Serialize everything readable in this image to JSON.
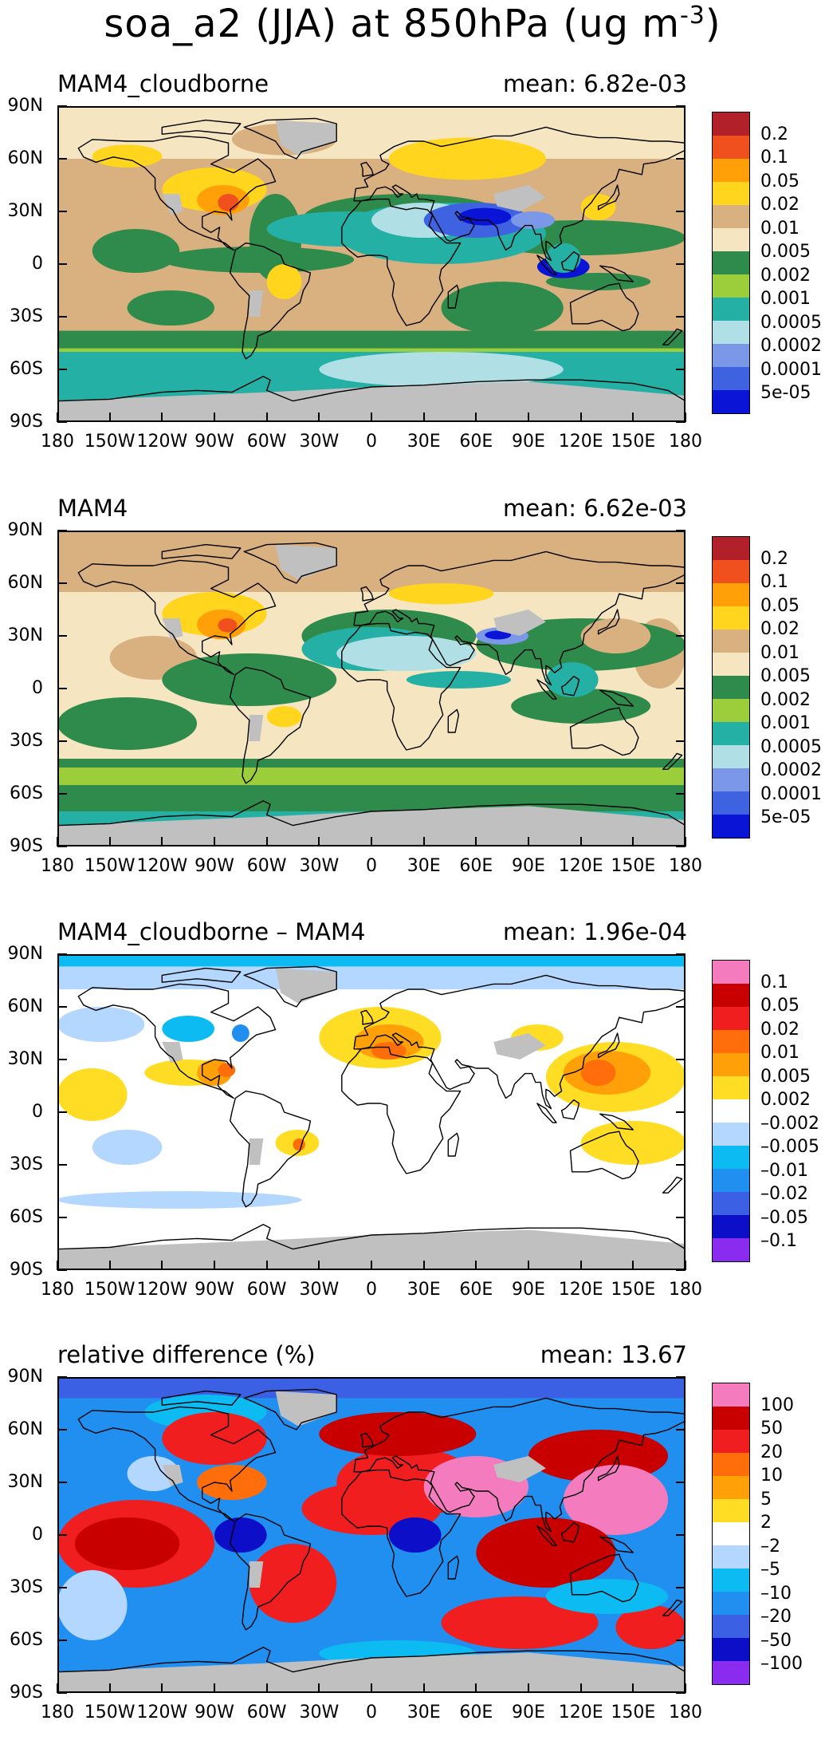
{
  "title": {
    "text": "soa_a2 (JJA) at 850hPa (ug m",
    "exp": "-3",
    "close": ")"
  },
  "axes": {
    "lat_labels": [
      "90N",
      "60N",
      "30N",
      "0",
      "30S",
      "60S",
      "90S"
    ],
    "lon_labels": [
      "180",
      "150W",
      "120W",
      "90W",
      "60W",
      "30W",
      "0",
      "30E",
      "60E",
      "90E",
      "120E",
      "150E",
      "180"
    ]
  },
  "palettes": {
    "abs": [
      "#b2202a",
      "#f0501e",
      "#ffa008",
      "#ffd51e",
      "#d9b07f",
      "#f5e6c1",
      "#2e8b4b",
      "#9cce3c",
      "#25b0a6",
      "#b0e0e6",
      "#7b97e8",
      "#3f63e0",
      "#0a14d6"
    ],
    "diff": [
      "#f47cbe",
      "#c80000",
      "#f01e1e",
      "#ff6e0a",
      "#ffa008",
      "#ffdd25",
      "#ffffff",
      "#b4d7ff",
      "#0cbbf2",
      "#208ff0",
      "#3b60e4",
      "#0c0ec8",
      "#8a2bf0"
    ],
    "land_missing": "#c0c0c0"
  },
  "panels": [
    {
      "left_title": "MAM4_cloudborne",
      "right_title": "mean: 6.82e-03",
      "legend": [
        "0.2",
        "0.1",
        "0.05",
        "0.02",
        "0.01",
        "0.005",
        "0.002",
        "0.001",
        "0.0005",
        "0.0002",
        "0.0001",
        "5e-05"
      ],
      "palette": "abs"
    },
    {
      "left_title": "MAM4",
      "right_title": "mean: 6.62e-03",
      "legend": [
        "0.2",
        "0.1",
        "0.05",
        "0.02",
        "0.01",
        "0.005",
        "0.002",
        "0.001",
        "0.0005",
        "0.0002",
        "0.0001",
        "5e-05"
      ],
      "palette": "abs"
    },
    {
      "left_title": "MAM4_cloudborne – MAM4",
      "right_title": "mean: 1.96e-04",
      "legend": [
        "0.1",
        "0.05",
        "0.02",
        "0.01",
        "0.005",
        "0.002",
        "–0.002",
        "–0.005",
        "–0.01",
        "–0.02",
        "–0.05",
        "–0.1"
      ],
      "palette": "diff"
    },
    {
      "left_title": "relative difference (%)",
      "right_title": "mean: 13.67",
      "legend": [
        "100",
        "50",
        "20",
        "10",
        "5",
        "2",
        "–2",
        "–5",
        "–10",
        "–20",
        "–50",
        "–100"
      ],
      "palette": "diff"
    }
  ]
}
